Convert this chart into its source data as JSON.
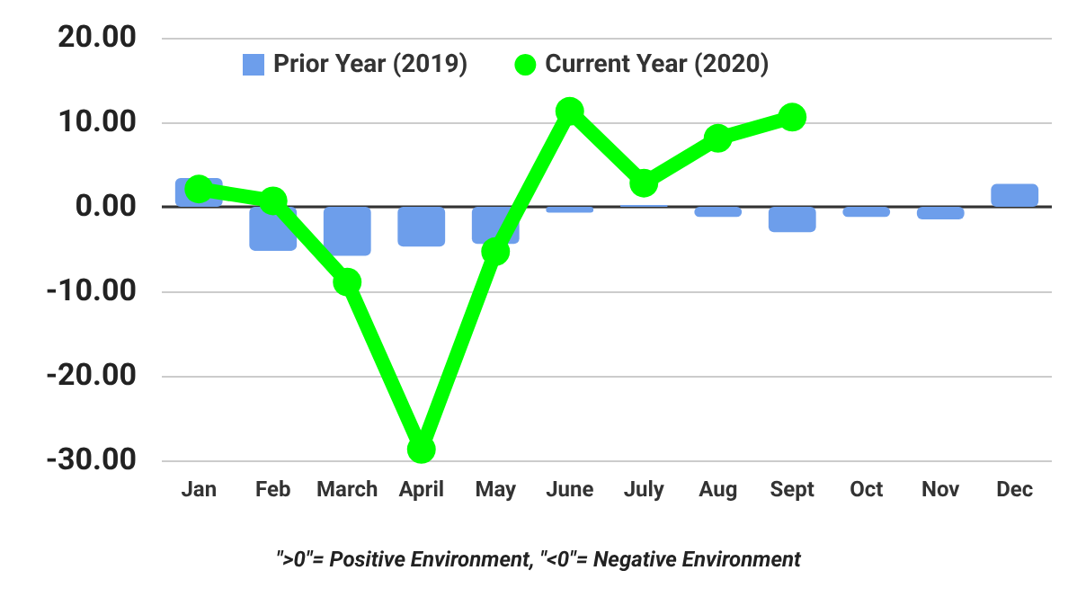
{
  "chart_data": {
    "type": "bar",
    "categories": [
      "Jan",
      "Feb",
      "March",
      "April",
      "May",
      "June",
      "July",
      "Aug",
      "Sept",
      "Oct",
      "Nov",
      "Dec"
    ],
    "series": [
      {
        "name": "Prior Year (2019)",
        "color": "#6d9eeb",
        "values": [
          3.4,
          -5.2,
          -5.8,
          -4.7,
          -4.4,
          -0.7,
          0.2,
          -1.2,
          -3.0,
          -1.2,
          -1.5,
          2.7
        ]
      },
      {
        "name": "Current Year (2020)",
        "type": "line",
        "color": "#00ff00",
        "values": [
          2.1,
          0.7,
          -8.9,
          -28.7,
          -5.3,
          11.3,
          2.8,
          8.1,
          10.6,
          null,
          null,
          null
        ]
      }
    ],
    "ylim": [
      -30,
      20
    ],
    "yticks": [
      {
        "value": -30,
        "label": "-30.00"
      },
      {
        "value": -20,
        "label": "-20.00"
      },
      {
        "value": -10,
        "label": "-10.00"
      },
      {
        "value": 0,
        "label": "0.00"
      },
      {
        "value": 10,
        "label": "10.00"
      },
      {
        "value": 20,
        "label": "20.00"
      }
    ],
    "grid": "y",
    "legend": "top",
    "marker": "circle",
    "line_style": "solid",
    "annotations": [
      "\">0\"= Positive Environment, \"<0\"= Negative Environment"
    ]
  }
}
